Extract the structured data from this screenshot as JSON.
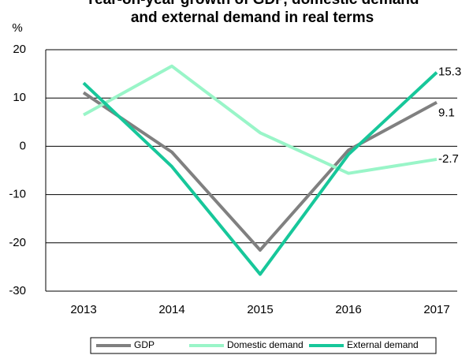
{
  "chart_data": {
    "type": "line",
    "title": "Year-on-year growth of GDP, domestic demand and external demand in real terms",
    "ylabel": "%",
    "categories": [
      "2013",
      "2014",
      "2015",
      "2016",
      "2017"
    ],
    "series": [
      {
        "name": "GDP",
        "color": "#808080",
        "values": [
          11.1,
          -1.2,
          -21.5,
          -0.8,
          9.1
        ]
      },
      {
        "name": "Domestic demand",
        "color": "#99f5c8",
        "values": [
          6.5,
          16.6,
          2.8,
          -5.6,
          -2.7
        ]
      },
      {
        "name": "External demand",
        "color": "#17c79a",
        "values": [
          13.1,
          -4.2,
          -26.5,
          -1.7,
          15.3
        ]
      }
    ],
    "ylim": [
      -30,
      20
    ],
    "yticks": [
      -30,
      -20,
      -10,
      0,
      10,
      20
    ],
    "grid": true,
    "legend": "bottom"
  }
}
